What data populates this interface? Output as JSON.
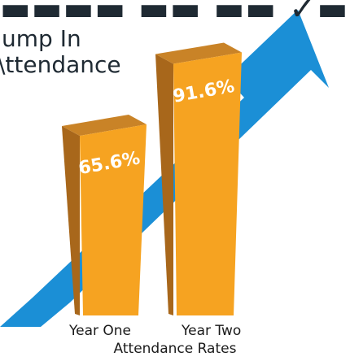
{
  "headline": {
    "line1": "▬▬▬▬ ▬▬ ▬▬ ✓▬",
    "line2": "ump In",
    "line3": "\\ttendance"
  },
  "colors": {
    "arrow": "#1b8fd6",
    "bar_front": "#f6a321",
    "bar_side": "#a8671b",
    "bar_top": "#c98327",
    "value_text": "#ffffff"
  },
  "chart_data": {
    "type": "bar",
    "categories": [
      "Year One",
      "Year Two"
    ],
    "values": [
      65.6,
      91.6
    ],
    "value_labels": [
      "65.6%",
      "91.6%"
    ],
    "xlabel": "Attendance Rates",
    "ylabel": "",
    "title": "",
    "ylim": [
      0,
      100
    ],
    "grid": false,
    "legend": "none"
  }
}
